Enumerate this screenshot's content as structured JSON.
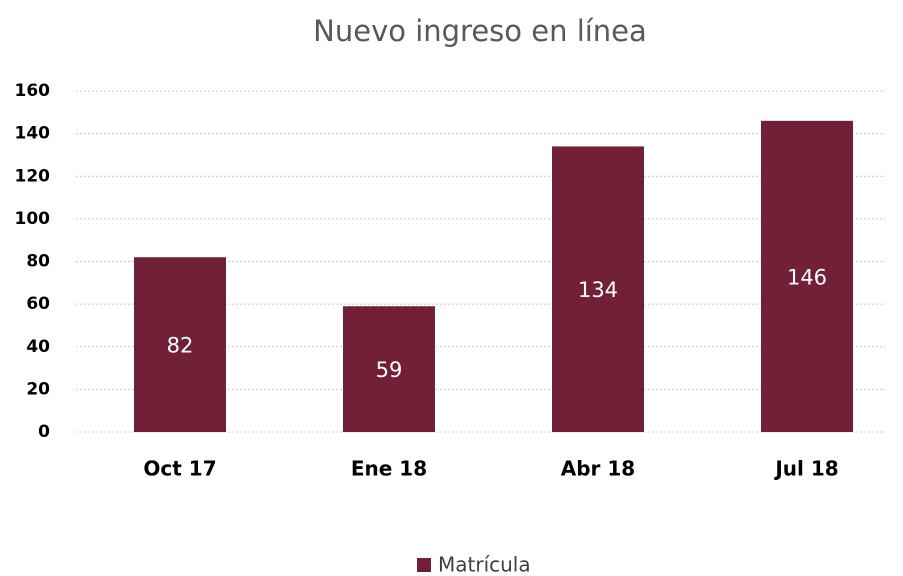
{
  "chart_data": {
    "type": "bar",
    "title": "Nuevo ingreso en línea",
    "categories": [
      "Oct 17",
      "Ene 18",
      "Abr 18",
      "Jul 18"
    ],
    "series": [
      {
        "name": "Matrícula",
        "color": "#722038",
        "values": [
          82,
          59,
          134,
          146
        ]
      }
    ],
    "ylim": [
      0,
      160
    ],
    "yticks": [
      0,
      20,
      40,
      60,
      80,
      100,
      120,
      140,
      160
    ],
    "grid": true,
    "legend": "bottom"
  }
}
